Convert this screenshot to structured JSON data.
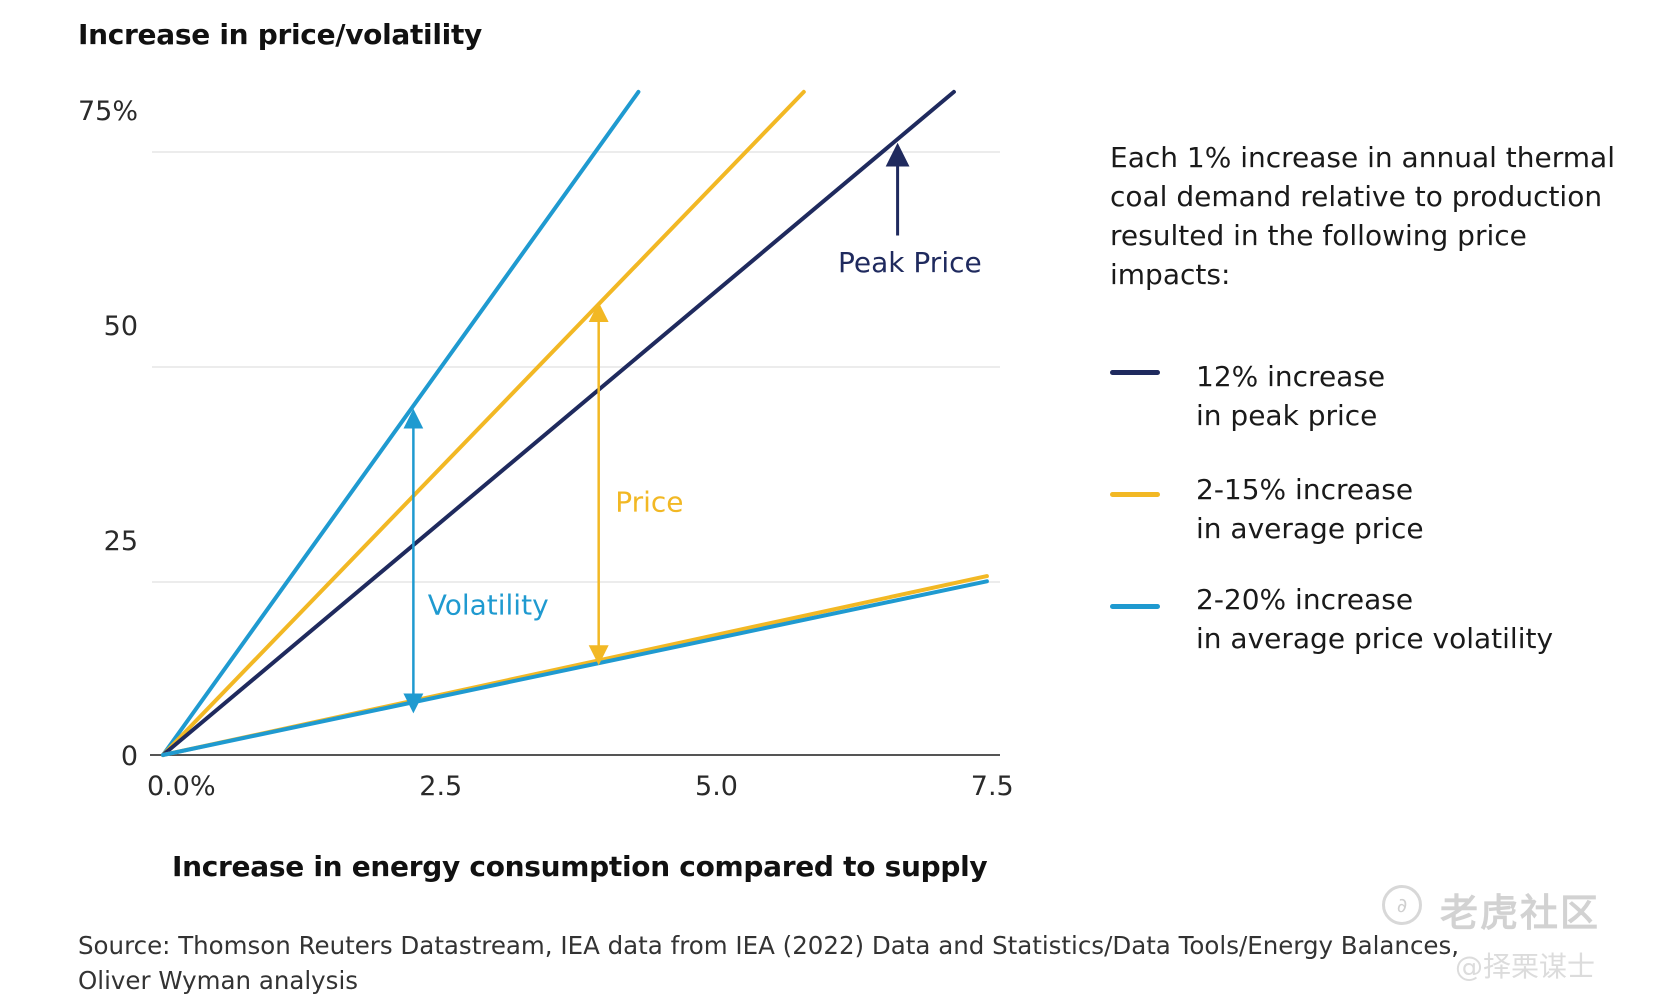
{
  "chart_data": {
    "type": "line",
    "title": "Increase in price/volatility",
    "xlabel": "Increase in energy consumption compared to supply",
    "ylabel": "Increase in price/volatility",
    "xlim": [
      0,
      7.5
    ],
    "ylim": [
      0,
      75
    ],
    "x_ticks": [
      {
        "value": 0,
        "label": "0.0%"
      },
      {
        "value": 2.5,
        "label": "2.5"
      },
      {
        "value": 5.0,
        "label": "5.0"
      },
      {
        "value": 7.5,
        "label": "7.5"
      }
    ],
    "y_ticks": [
      {
        "value": 0,
        "label": "0"
      },
      {
        "value": 25,
        "label": "25"
      },
      {
        "value": 50,
        "label": "50"
      },
      {
        "value": 75,
        "label": "75%"
      }
    ],
    "grid": true,
    "series": [
      {
        "name": "Volatility (upper)",
        "color": "#1f9ad0",
        "points": [
          [
            0,
            0
          ],
          [
            4.31,
            77.1
          ]
        ]
      },
      {
        "name": "Average price (upper)",
        "color": "#f2b824",
        "points": [
          [
            0,
            0
          ],
          [
            5.81,
            77.1
          ]
        ]
      },
      {
        "name": "Peak price",
        "color": "#1f2a5e",
        "points": [
          [
            0,
            0
          ],
          [
            7.17,
            77.1
          ]
        ]
      },
      {
        "name": "Average price (lower)",
        "color": "#f2b824",
        "points": [
          [
            0,
            0
          ],
          [
            7.47,
            20.8
          ]
        ]
      },
      {
        "name": "Volatility (lower)",
        "color": "#1f9ad0",
        "points": [
          [
            0,
            0
          ],
          [
            7.47,
            20.2
          ]
        ]
      }
    ],
    "annotations": [
      {
        "label": "Volatility",
        "color": "#1f9ad0",
        "type": "double-arrow",
        "x": 2.27,
        "y_from": 6.0,
        "y_to": 39.1,
        "label_x": 2.4,
        "label_y": 17.5
      },
      {
        "label": "Price",
        "color": "#f2b824",
        "type": "double-arrow",
        "x": 3.95,
        "y_from": 11.6,
        "y_to": 51.5,
        "label_x": 4.1,
        "label_y": 29.5
      },
      {
        "label": "Peak Price",
        "color": "#1f2a5e",
        "type": "up-arrow",
        "x": 6.66,
        "y_from": 60.4,
        "y_to": 69.8,
        "label_x": 6.12,
        "label_y": 57.3
      }
    ],
    "legend": {
      "placement": "right",
      "intro": "Each 1% increase in annual thermal coal demand relative to production resulted in the following price impacts:",
      "items": [
        {
          "line1": "12% increase",
          "line2": "in peak price",
          "color": "#1f2a5e"
        },
        {
          "line1": "2-15% increase",
          "line2": "in average price",
          "color": "#f2b824"
        },
        {
          "line1": "2-20% increase",
          "line2": "in average price volatility",
          "color": "#1f9ad0"
        }
      ]
    }
  },
  "source": {
    "line1": "Source: Thomson Reuters Datastream, IEA data from IEA (2022) Data and Statistics/Data Tools/Energy Balances,",
    "line2": "Oliver Wyman analysis"
  },
  "watermark": {
    "main": "老虎社区",
    "sub": "@择栗谋士",
    "logo_icon": "tiger-community-logo-icon"
  }
}
